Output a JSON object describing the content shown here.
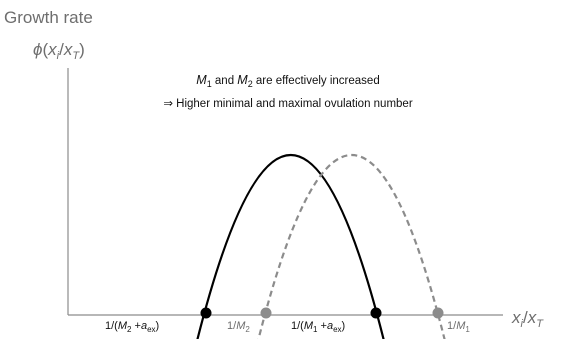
{
  "axis": {
    "y_title": "Growth rate",
    "y_symbol_phi": "ϕ",
    "y_symbol_open": "(",
    "y_symbol_x": "x",
    "y_symbol_i": "i",
    "y_symbol_slash": "/",
    "y_symbol_x2": "x",
    "y_symbol_T": "T",
    "y_symbol_close": ")",
    "x_x": "x",
    "x_i": "i",
    "x_slash": "/",
    "x_x2": "x",
    "x_T": "T"
  },
  "annotation": {
    "line1_M1": "M",
    "line1_M1_sub": "1",
    "line1_and": " and ",
    "line1_M2": "M",
    "line1_M2_sub": "2",
    "line1_rest": " are effectively increased",
    "line2": "⇒ Higher minimal and maximal ovulation number"
  },
  "markers": {
    "m2aex_pre": "1/(",
    "m2aex_M": "M",
    "m2aex_sub": "2",
    "m2aex_plus": " +",
    "m2aex_a": "a",
    "m2aex_asub": "ex",
    "m2aex_post": ")",
    "m2_pre": "1/",
    "m2_M": "M",
    "m2_sub": "2",
    "m1aex_pre": "1/(",
    "m1aex_M": "M",
    "m1aex_sub": "1",
    "m1aex_plus": " +",
    "m1aex_a": "a",
    "m1aex_asub": "ex",
    "m1aex_post": ")",
    "m1_pre": "1/",
    "m1_M": "M",
    "m1_sub": "1"
  },
  "colors": {
    "solid_curve": "#000000",
    "dashed_curve": "#8c8c8c",
    "axis": "#8c8c8c",
    "gray_text": "#6e6e6e"
  }
}
